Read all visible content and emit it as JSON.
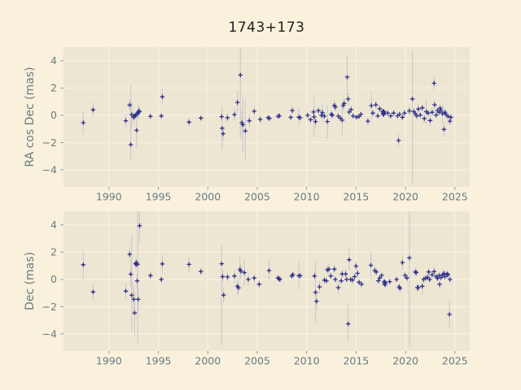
{
  "figure": {
    "title": "1743+173"
  },
  "colors": {
    "figure_bg": "#FAF1DC",
    "panel_bg": "#ECE6D3",
    "grid": "#F8F2E0",
    "marker": "#31318B",
    "error_bar": "#B3B0C2",
    "tick": "#8A9499",
    "tick_label_text": "#657B83",
    "axis_label_text": "#657B83",
    "title_text": "#1E1E1E"
  },
  "chart_data": {
    "type": "scatter",
    "title": "1743+173",
    "xlabel": "",
    "marker": "+",
    "error_bars": true,
    "grid": true,
    "legend": "none",
    "point_format": "[year, mas, err_up, err_down(optional, defaults to err_up)]",
    "xlim": [
      1985.4,
      2026.5
    ],
    "ylim": [
      -5.25,
      5.0
    ],
    "x_ticks": [
      1990,
      1995,
      2000,
      2005,
      2010,
      2015,
      2020,
      2025
    ],
    "x_tick_labels": [
      "1990",
      "1995",
      "2000",
      "2005",
      "2010",
      "2015",
      "2020",
      "2025"
    ],
    "y_ticks": [
      4,
      2,
      0,
      -2,
      -4
    ],
    "y_tick_labels": [
      "4",
      "2",
      "0",
      "−2",
      "−4"
    ],
    "panels": [
      {
        "ylabel": "RA cos Dec (mas)",
        "points": [
          [
            1987.4,
            -0.55,
            0.85
          ],
          [
            1988.4,
            0.4,
            0.55
          ],
          [
            1991.7,
            -0.4,
            0.45
          ],
          [
            1992.1,
            0.75,
            0.35
          ],
          [
            1992.2,
            -2.15,
            4.35,
            1.15
          ],
          [
            1992.3,
            0.05,
            0.95
          ],
          [
            1992.5,
            -0.15,
            0.4
          ],
          [
            1992.6,
            -0.05,
            0.3
          ],
          [
            1992.7,
            0.0,
            0.25
          ],
          [
            1992.8,
            -1.1,
            1.3
          ],
          [
            1992.85,
            0.1,
            0.25
          ],
          [
            1992.95,
            0.2,
            0.45
          ],
          [
            1993.0,
            0.3,
            0.5
          ],
          [
            1993.1,
            0.28,
            0.3
          ],
          [
            1994.2,
            -0.08,
            0.2
          ],
          [
            1995.3,
            -0.05,
            0.18
          ],
          [
            1995.4,
            1.35,
            0.6
          ],
          [
            1998.1,
            -0.5,
            0.3
          ],
          [
            1999.3,
            -0.2,
            0.18
          ],
          [
            2001.4,
            -0.1,
            0.25
          ],
          [
            2001.45,
            -0.95,
            1.6
          ],
          [
            2001.55,
            -1.35,
            0.5
          ],
          [
            2002.0,
            -0.18,
            0.3
          ],
          [
            2002.7,
            0.05,
            0.4
          ],
          [
            2003.0,
            0.95,
            0.8
          ],
          [
            2003.3,
            2.95,
            2.0,
            4.7
          ],
          [
            2003.45,
            -0.55,
            0.9
          ],
          [
            2003.55,
            -0.7,
            2.0
          ],
          [
            2003.8,
            -1.15,
            2.2
          ],
          [
            2004.2,
            -0.4,
            0.45
          ],
          [
            2004.7,
            0.3,
            0.4
          ],
          [
            2005.3,
            -0.3,
            0.3
          ],
          [
            2006.1,
            -0.18,
            0.25
          ],
          [
            2006.25,
            -0.22,
            0.2
          ],
          [
            2007.1,
            -0.07,
            0.18
          ],
          [
            2007.25,
            -0.04,
            0.18
          ],
          [
            2008.4,
            -0.15,
            0.22
          ],
          [
            2008.55,
            0.35,
            0.28
          ],
          [
            2009.2,
            -0.14,
            0.6
          ],
          [
            2009.35,
            -0.18,
            0.22
          ],
          [
            2010.1,
            0.0,
            0.22
          ],
          [
            2010.4,
            -0.32,
            0.3
          ],
          [
            2010.7,
            0.24,
            0.28
          ],
          [
            2010.75,
            -0.12,
            1.5
          ],
          [
            2010.9,
            -0.46,
            0.45
          ],
          [
            2011.2,
            0.34,
            0.3
          ],
          [
            2011.5,
            0.0,
            0.22
          ],
          [
            2011.6,
            0.2,
            0.7
          ],
          [
            2011.8,
            -0.06,
            0.22
          ],
          [
            2012.1,
            -0.46,
            1.2
          ],
          [
            2012.5,
            0.08,
            0.22
          ],
          [
            2012.6,
            0.0,
            0.22
          ],
          [
            2012.8,
            0.73,
            0.35
          ],
          [
            2012.9,
            0.6,
            0.3
          ],
          [
            2013.2,
            -0.06,
            0.22
          ],
          [
            2013.4,
            -0.2,
            0.25
          ],
          [
            2013.6,
            -0.36,
            1.1
          ],
          [
            2013.7,
            0.73,
            0.35
          ],
          [
            2013.8,
            0.87,
            0.4
          ],
          [
            2014.1,
            2.8,
            1.6
          ],
          [
            2014.2,
            1.19,
            0.45
          ],
          [
            2014.3,
            0.24,
            0.25
          ],
          [
            2014.5,
            0.42,
            0.3
          ],
          [
            2014.7,
            -0.04,
            0.22
          ],
          [
            2015.05,
            -0.14,
            0.2
          ],
          [
            2015.3,
            -0.08,
            0.2
          ],
          [
            2015.5,
            0.08,
            0.22
          ],
          [
            2016.2,
            -0.43,
            0.3
          ],
          [
            2016.55,
            0.71,
            1.0
          ],
          [
            2016.7,
            0.16,
            0.25
          ],
          [
            2017.0,
            0.77,
            0.3
          ],
          [
            2017.2,
            -0.04,
            0.2
          ],
          [
            2017.4,
            0.48,
            0.25
          ],
          [
            2017.7,
            0.3,
            0.15
          ],
          [
            2017.73,
            0.12,
            0.15
          ],
          [
            2017.76,
            0.22,
            0.15
          ],
          [
            2017.79,
            0.05,
            0.15
          ],
          [
            2017.82,
            0.28,
            0.15
          ],
          [
            2017.85,
            0.16,
            0.15
          ],
          [
            2018.2,
            0.16,
            0.22
          ],
          [
            2018.5,
            -0.04,
            0.2
          ],
          [
            2018.8,
            0.16,
            0.22
          ],
          [
            2019.2,
            -0.04,
            0.22
          ],
          [
            2019.3,
            -1.85,
            0.45
          ],
          [
            2019.4,
            0.08,
            0.2
          ],
          [
            2019.7,
            -0.14,
            0.22
          ],
          [
            2019.9,
            0.16,
            0.25
          ],
          [
            2020.4,
            0.32,
            0.35
          ],
          [
            2020.7,
            1.2,
            3.6,
            6.2
          ],
          [
            2020.85,
            0.26,
            0.3
          ],
          [
            2021.0,
            0.12,
            0.25
          ],
          [
            2021.15,
            -0.04,
            0.28
          ],
          [
            2021.3,
            0.46,
            0.35
          ],
          [
            2021.5,
            0.02,
            0.25
          ],
          [
            2021.7,
            0.55,
            0.3
          ],
          [
            2021.9,
            -0.24,
            0.35
          ],
          [
            2022.1,
            0.26,
            0.9
          ],
          [
            2022.3,
            0.16,
            0.25
          ],
          [
            2022.5,
            -0.38,
            0.4
          ],
          [
            2022.7,
            0.22,
            0.3
          ],
          [
            2022.9,
            2.35,
            0.5
          ],
          [
            2022.95,
            0.77,
            0.35
          ],
          [
            2023.1,
            0.02,
            0.25
          ],
          [
            2023.25,
            0.36,
            0.28
          ],
          [
            2023.4,
            0.22,
            0.25
          ],
          [
            2023.5,
            0.52,
            0.3
          ],
          [
            2023.6,
            0.36,
            0.28
          ],
          [
            2023.75,
            0.12,
            0.7
          ],
          [
            2023.9,
            -1.03,
            0.5
          ],
          [
            2024.0,
            0.22,
            0.28
          ],
          [
            2024.1,
            0.06,
            0.25
          ],
          [
            2024.3,
            -0.08,
            0.25
          ],
          [
            2024.5,
            -0.43,
            0.3
          ],
          [
            2024.6,
            -0.14,
            0.25
          ]
        ]
      },
      {
        "ylabel": "Dec (mas)",
        "points": [
          [
            1987.4,
            1.08,
            1.05
          ],
          [
            1988.4,
            -0.92,
            0.55
          ],
          [
            1991.7,
            -0.86,
            0.6
          ],
          [
            1992.1,
            1.84,
            0.55
          ],
          [
            1992.2,
            0.38,
            0.95
          ],
          [
            1992.3,
            -1.16,
            4.5,
            2.7
          ],
          [
            1992.5,
            -1.46,
            1.1
          ],
          [
            1992.6,
            -2.46,
            1.6
          ],
          [
            1992.7,
            1.16,
            0.35
          ],
          [
            1992.75,
            1.1,
            0.3
          ],
          [
            1992.8,
            1.22,
            0.3
          ],
          [
            1992.85,
            -0.1,
            0.55
          ],
          [
            1992.9,
            1.1,
            3.9,
            5.8
          ],
          [
            1992.95,
            -1.46,
            0.9
          ],
          [
            1993.1,
            3.94,
            1.15,
            1.25
          ],
          [
            1994.2,
            0.28,
            0.3
          ],
          [
            1995.3,
            0.0,
            0.22
          ],
          [
            1995.4,
            1.14,
            0.7
          ],
          [
            1998.1,
            1.1,
            0.55
          ],
          [
            1999.3,
            0.58,
            0.25
          ],
          [
            2001.4,
            1.15,
            1.35,
            6.0
          ],
          [
            2001.5,
            0.2,
            0.45
          ],
          [
            2001.6,
            -1.15,
            0.55
          ],
          [
            2002.0,
            0.18,
            0.35
          ],
          [
            2002.7,
            0.25,
            0.45
          ],
          [
            2003.0,
            -0.5,
            0.6
          ],
          [
            2003.1,
            -0.62,
            0.45
          ],
          [
            2003.25,
            0.74,
            0.85
          ],
          [
            2003.35,
            0.6,
            0.55
          ],
          [
            2003.7,
            0.5,
            0.95
          ],
          [
            2004.1,
            0.0,
            0.45
          ],
          [
            2004.7,
            0.1,
            0.35
          ],
          [
            2005.2,
            -0.35,
            0.32
          ],
          [
            2006.2,
            0.65,
            0.8
          ],
          [
            2007.1,
            0.1,
            0.22
          ],
          [
            2007.2,
            0.05,
            0.2
          ],
          [
            2007.3,
            0.0,
            0.22
          ],
          [
            2008.5,
            0.25,
            0.22
          ],
          [
            2008.6,
            0.35,
            0.22
          ],
          [
            2009.2,
            0.27,
            1.05
          ],
          [
            2009.35,
            0.27,
            0.22
          ],
          [
            2010.8,
            0.25,
            0.32
          ],
          [
            2010.9,
            -0.95,
            2.3
          ],
          [
            2011.0,
            -1.6,
            0.55
          ],
          [
            2011.3,
            -0.55,
            0.45
          ],
          [
            2011.8,
            -0.05,
            0.28
          ],
          [
            2012.0,
            -0.1,
            0.22
          ],
          [
            2012.1,
            0.7,
            0.32
          ],
          [
            2012.25,
            0.75,
            0.38
          ],
          [
            2012.45,
            0.25,
            0.28
          ],
          [
            2012.8,
            0.75,
            0.32
          ],
          [
            2012.9,
            0.0,
            0.22
          ],
          [
            2013.2,
            -0.6,
            0.45
          ],
          [
            2013.5,
            -0.1,
            0.28
          ],
          [
            2013.6,
            0.4,
            0.32
          ],
          [
            2013.95,
            0.4,
            0.28
          ],
          [
            2014.05,
            0.0,
            0.22
          ],
          [
            2014.2,
            -3.26,
            1.5,
            1.3
          ],
          [
            2014.3,
            1.44,
            0.78
          ],
          [
            2014.45,
            0.0,
            0.22
          ],
          [
            2014.65,
            -0.05,
            0.22
          ],
          [
            2014.85,
            0.2,
            0.22
          ],
          [
            2015.0,
            0.98,
            0.35
          ],
          [
            2015.15,
            0.45,
            0.28
          ],
          [
            2015.3,
            -0.2,
            0.22
          ],
          [
            2015.55,
            -0.35,
            0.25
          ],
          [
            2016.5,
            1.04,
            1.05
          ],
          [
            2016.9,
            0.65,
            0.32
          ],
          [
            2017.05,
            0.55,
            0.3
          ],
          [
            2017.25,
            -0.1,
            0.22
          ],
          [
            2017.4,
            0.1,
            0.2
          ],
          [
            2017.6,
            0.3,
            0.22
          ],
          [
            2017.85,
            -0.15,
            0.15
          ],
          [
            2017.88,
            -0.3,
            0.15
          ],
          [
            2017.9,
            -0.28,
            0.15
          ],
          [
            2017.93,
            -0.4,
            0.15
          ],
          [
            2017.96,
            -0.22,
            0.15
          ],
          [
            2018.4,
            -0.16,
            0.22
          ],
          [
            2019.1,
            0.0,
            0.2
          ],
          [
            2019.35,
            -0.55,
            0.28
          ],
          [
            2019.45,
            -0.65,
            0.28
          ],
          [
            2019.7,
            1.24,
            0.5
          ],
          [
            2019.95,
            0.3,
            0.28
          ],
          [
            2020.15,
            0.1,
            0.35
          ],
          [
            2020.4,
            1.58,
            3.4,
            6.5
          ],
          [
            2021.0,
            0.55,
            0.32
          ],
          [
            2021.1,
            0.5,
            0.28
          ],
          [
            2021.2,
            -0.6,
            0.32
          ],
          [
            2021.3,
            -0.6,
            0.28
          ],
          [
            2021.7,
            -0.5,
            0.65
          ],
          [
            2021.85,
            0.0,
            0.28
          ],
          [
            2022.05,
            0.1,
            0.22
          ],
          [
            2022.25,
            0.15,
            0.28
          ],
          [
            2022.35,
            0.55,
            0.32
          ],
          [
            2022.45,
            0.0,
            0.22
          ],
          [
            2022.7,
            0.34,
            0.28
          ],
          [
            2022.9,
            0.58,
            0.35
          ],
          [
            2023.1,
            0.2,
            0.22
          ],
          [
            2023.25,
            0.08,
            0.22
          ],
          [
            2023.4,
            0.28,
            0.25
          ],
          [
            2023.45,
            -0.36,
            0.3
          ],
          [
            2023.6,
            0.14,
            0.22
          ],
          [
            2023.75,
            0.34,
            0.25
          ],
          [
            2023.9,
            0.44,
            0.28
          ],
          [
            2024.0,
            0.2,
            0.25
          ],
          [
            2024.2,
            0.4,
            0.28
          ],
          [
            2024.3,
            0.34,
            0.25
          ],
          [
            2024.45,
            -2.56,
            0.95
          ],
          [
            2024.5,
            0.0,
            0.22
          ]
        ]
      }
    ]
  }
}
